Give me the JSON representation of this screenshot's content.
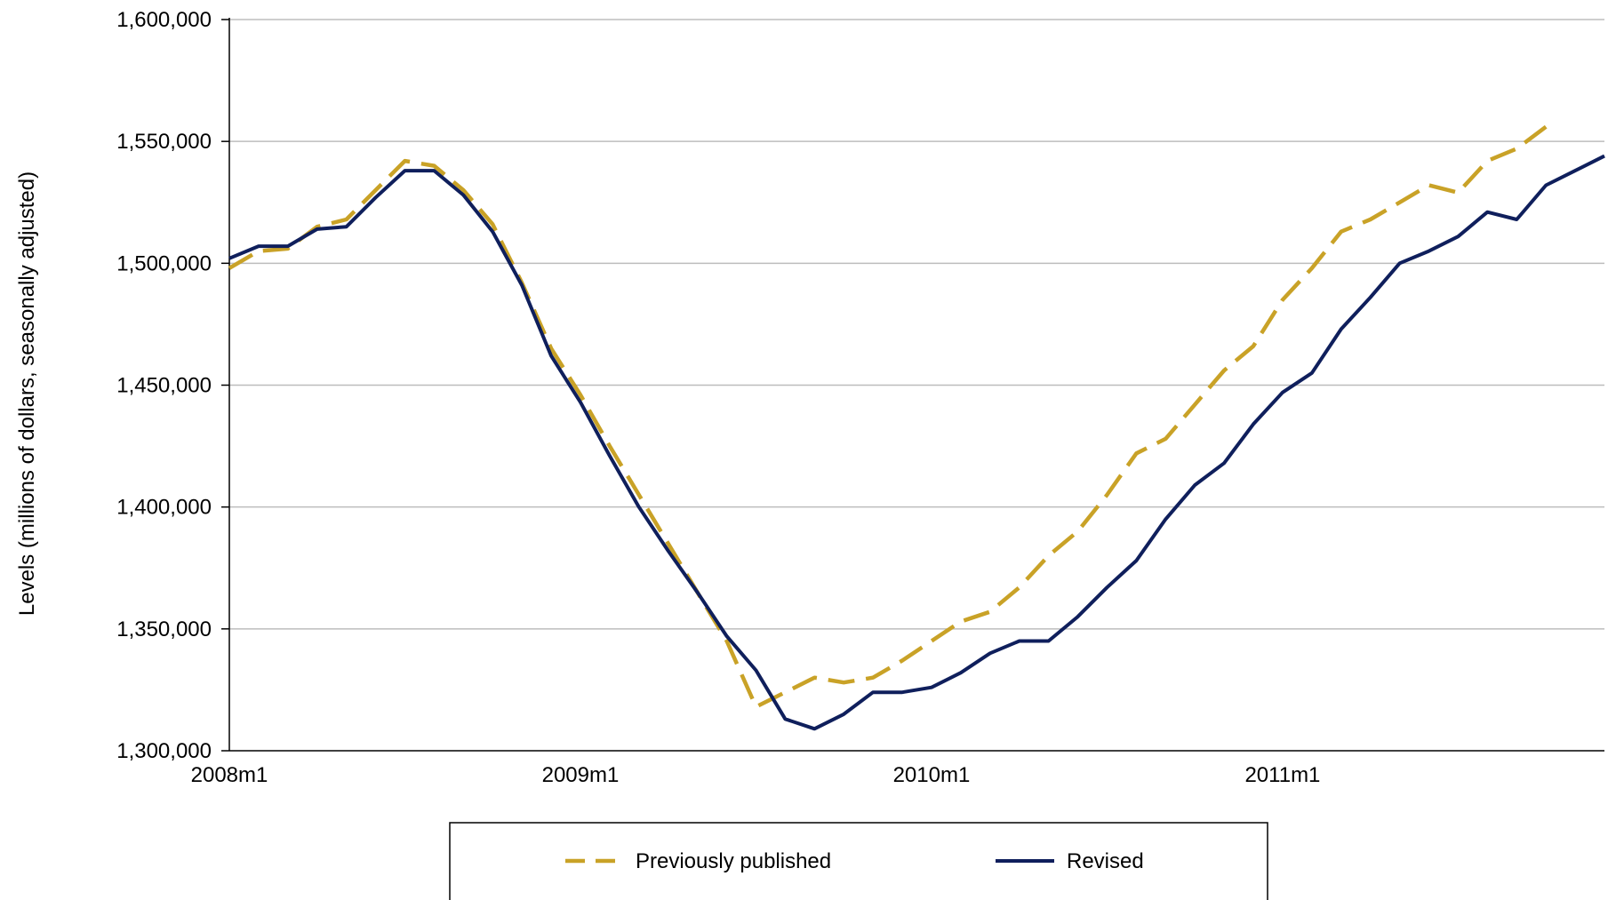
{
  "chart_data": {
    "type": "line",
    "title": "",
    "xlabel": "",
    "ylabel": "Levels (millions of dollars, seasonally adjusted)",
    "ylim": [
      1300000,
      1600000
    ],
    "y_ticks": [
      1300000,
      1350000,
      1400000,
      1450000,
      1500000,
      1550000,
      1600000
    ],
    "y_tick_labels": [
      "1,300,000",
      "1,350,000",
      "1,400,000",
      "1,450,000",
      "1,500,000",
      "1,550,000",
      "1,600,000"
    ],
    "x_tick_labels": [
      "2008m1",
      "2009m1",
      "2010m1",
      "2011m1"
    ],
    "x_tick_indices": [
      0,
      12,
      24,
      36
    ],
    "x_count": 48,
    "grid": "horizontal",
    "legend_placement": "bottom",
    "series": [
      {
        "name": "Previously published",
        "color": "#C9A227",
        "style": "dashed",
        "values": [
          1498000,
          1505000,
          1506000,
          1515000,
          1518000,
          1530000,
          1542000,
          1540000,
          1530000,
          1516000,
          1492000,
          1465000,
          1446000,
          1425000,
          1405000,
          1385000,
          1365000,
          1345000,
          1318000,
          1324000,
          1330000,
          1328000,
          1330000,
          1337000,
          1345000,
          1353000,
          1357000,
          1367000,
          1380000,
          1390000,
          1405000,
          1422000,
          1428000,
          1442000,
          1456000,
          1466000,
          1485000,
          1498000,
          1513000,
          1518000,
          1525000,
          1532000,
          1529000,
          1542000,
          1547000,
          1556000
        ]
      },
      {
        "name": "Revised",
        "color": "#0F1F5C",
        "style": "solid",
        "values": [
          1502000,
          1507000,
          1507000,
          1514000,
          1515000,
          1527000,
          1538000,
          1538000,
          1528000,
          1513000,
          1491000,
          1462000,
          1443000,
          1421000,
          1400000,
          1382000,
          1365000,
          1347000,
          1333000,
          1313000,
          1309000,
          1315000,
          1324000,
          1324000,
          1326000,
          1332000,
          1340000,
          1345000,
          1345000,
          1355000,
          1367000,
          1378000,
          1395000,
          1409000,
          1418000,
          1434000,
          1447000,
          1455000,
          1473000,
          1486000,
          1500000,
          1505000,
          1511000,
          1521000,
          1518000,
          1532000,
          1538000,
          1544000
        ]
      }
    ]
  }
}
